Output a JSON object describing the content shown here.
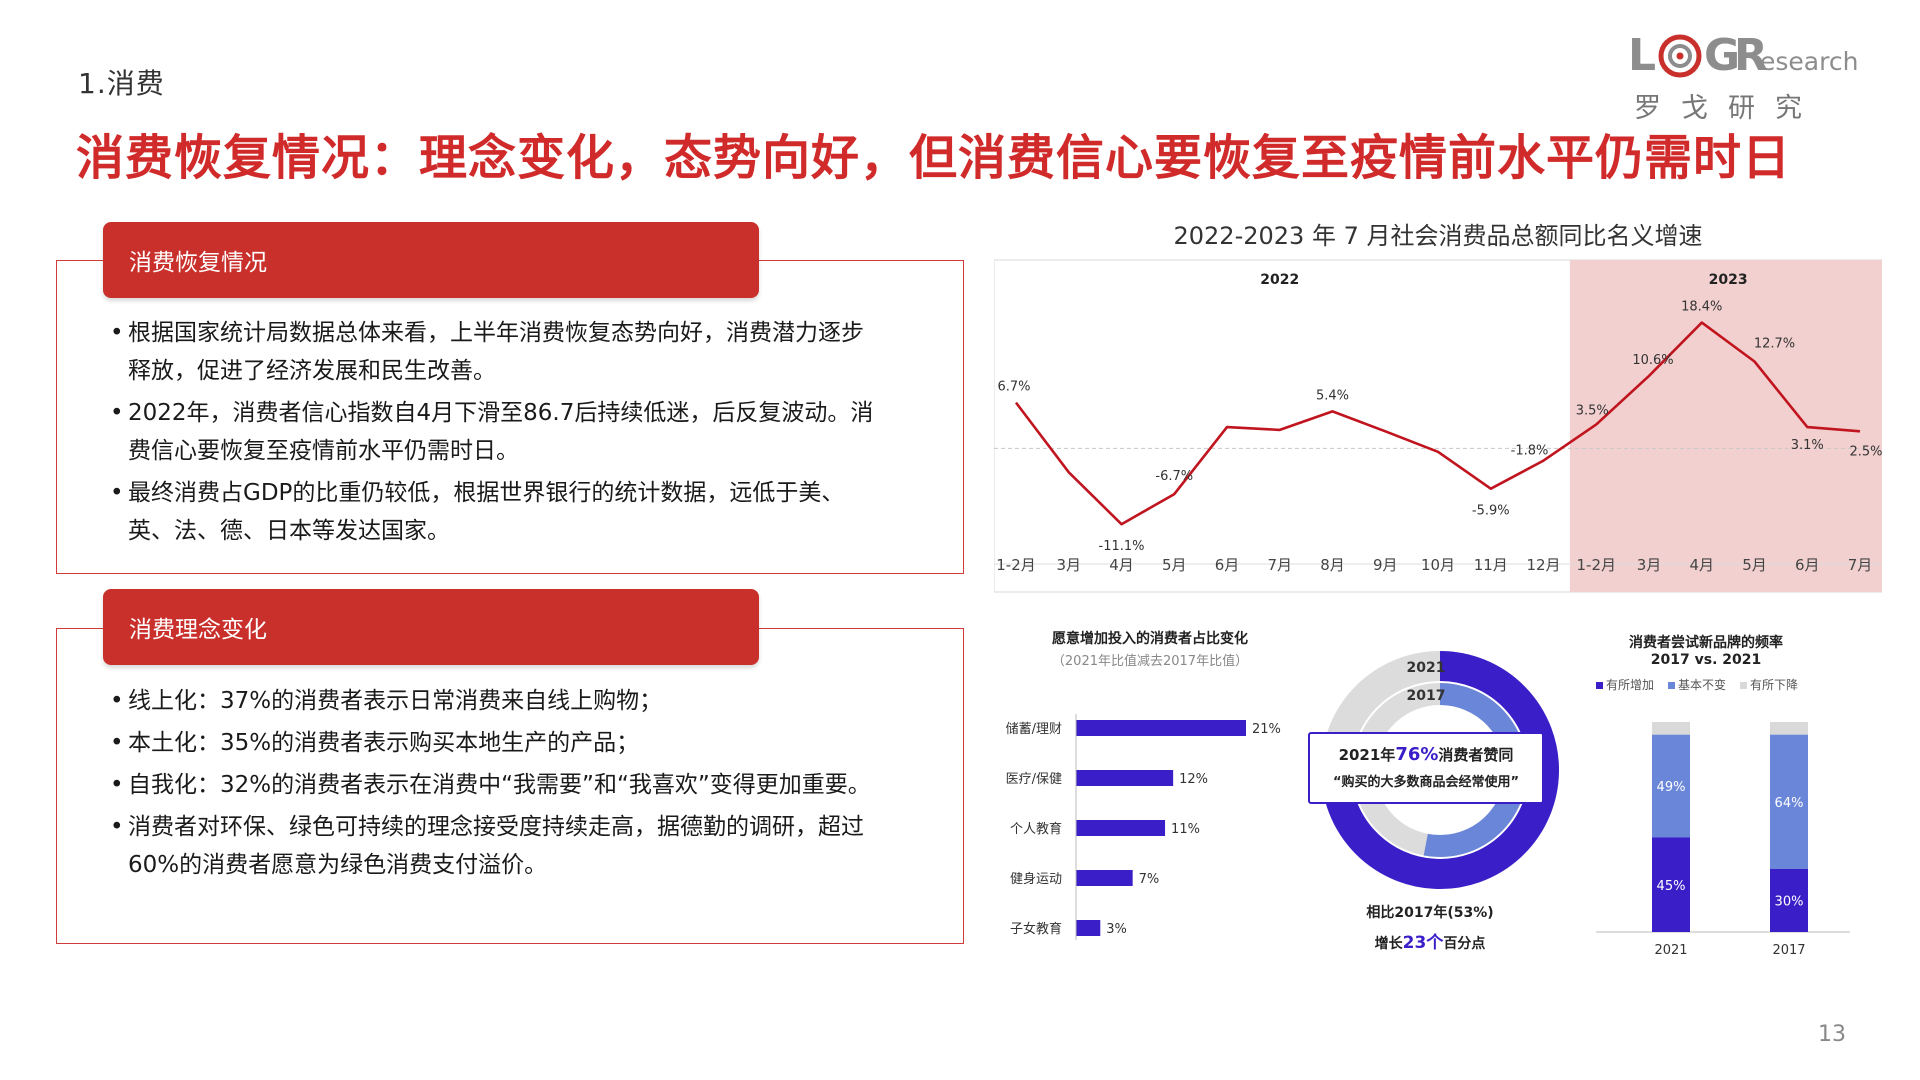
{
  "section": "1.消费",
  "title": "消费恢复情况：理念变化，态势向好，但消费信心要恢复至疫情前水平仍需时日",
  "logo": {
    "word": "LOGResearch",
    "sub": "罗戈研究"
  },
  "box1": {
    "heading": "消费恢复情况",
    "bullets": [
      "根据国家统计局数据总体来看，上半年消费恢复态势向好，消费潜力逐步释放，促进了经济发展和民生改善。",
      "2022年，消费者信心指数自4月下滑至86.7后持续低迷，后反复波动。消费信心要恢复至疫情前水平仍需时日。",
      "最终消费占GDP的比重仍较低，根据世界银行的统计数据，远低于美、英、法、德、日本等发达国家。"
    ]
  },
  "box2": {
    "heading": "消费理念变化",
    "bullets": [
      "线上化：37%的消费者表示日常消费来自线上购物；",
      "本土化：35%的消费者表示购买本地生产的产品；",
      "自我化：32%的消费者表示在消费中“我需要”和“我喜欢”变得更加重要。",
      "消费者对环保、绿色可持续的理念接受度持续走高，据德勤的调研，超过60%的消费者愿意为绿色消费支付溢价。"
    ]
  },
  "line_chart_title": "2022-2023 年 7 月社会消费品总额同比名义增速",
  "bar_chart": {
    "title": "愿意增加投入的消费者占比变化",
    "subtitle": "（2021年比值减去2017年比值）"
  },
  "donut": {
    "ring_outer_label": "2021",
    "ring_inner_label": "2017",
    "callout_prefix": "2021年",
    "callout_value": "76%",
    "callout_suffix": "消费者赞同",
    "callout_quote": "“购买的大多数商品会经常使用”",
    "note_line1": "相比2017年(53%)",
    "note_line2_prefix": "增长",
    "note_line2_value": "23个",
    "note_line2_suffix": "百分点"
  },
  "stacked": {
    "title_line1": "消费者尝试新品牌的频率",
    "title_line2": "2017 vs. 2021",
    "legend": [
      "有所增加",
      "基本不变",
      "有所下降"
    ]
  },
  "page_number": "13",
  "colors": {
    "accent_red": "#c9302c",
    "line_red": "#c0141e",
    "bar_purple": "#3a1fc9",
    "light_blue": "#6a86d8",
    "shade_pink": "#f3d0d0"
  },
  "chart_data": [
    {
      "type": "line",
      "title": "2022-2023 年 7 月社会消费品总额同比名义增速",
      "groups": [
        {
          "label": "2022",
          "categories": [
            "1-2月",
            "3月",
            "4月",
            "5月",
            "6月",
            "7月",
            "8月",
            "9月",
            "10月",
            "11月",
            "12月"
          ]
        },
        {
          "label": "2023",
          "categories": [
            "1-2月",
            "3月",
            "4月",
            "5月",
            "6月",
            "7月"
          ],
          "shaded": true
        }
      ],
      "x": [
        "1-2月",
        "3月",
        "4月",
        "5月",
        "6月",
        "7月",
        "8月",
        "9月",
        "10月",
        "11月",
        "12月",
        "1-2月",
        "3月",
        "4月",
        "5月",
        "6月",
        "7月"
      ],
      "values": [
        6.7,
        -3.5,
        -11.1,
        -6.7,
        3.1,
        2.7,
        5.4,
        2.5,
        -0.5,
        -5.9,
        -1.8,
        3.5,
        10.6,
        18.4,
        12.7,
        3.1,
        2.5
      ],
      "data_labels": [
        {
          "index": 0,
          "text": "6.7%"
        },
        {
          "index": 2,
          "text": "-11.1%"
        },
        {
          "index": 3,
          "text": "-6.7%"
        },
        {
          "index": 6,
          "text": "5.4%"
        },
        {
          "index": 9,
          "text": "-5.9%"
        },
        {
          "index": 10,
          "text": "-1.8%"
        },
        {
          "index": 11,
          "text": "3.5%"
        },
        {
          "index": 12,
          "text": "10.6%"
        },
        {
          "index": 13,
          "text": "18.4%"
        },
        {
          "index": 14,
          "text": "12.7%"
        },
        {
          "index": 15,
          "text": "3.1%"
        },
        {
          "index": 16,
          "text": "2.5%"
        }
      ],
      "ylim": [
        -14,
        22
      ]
    },
    {
      "type": "bar",
      "orientation": "horizontal",
      "title": "愿意增加投入的消费者占比变化",
      "subtitle": "（2021年比值减去2017年比值）",
      "categories": [
        "储蓄/理财",
        "医疗/保健",
        "个人教育",
        "健身运动",
        "子女教育"
      ],
      "values": [
        21,
        12,
        11,
        7,
        3
      ],
      "value_labels": [
        "21%",
        "12%",
        "11%",
        "7%",
        "3%"
      ]
    },
    {
      "type": "pie",
      "variant": "double-donut",
      "rings": [
        {
          "label": "2021",
          "value": 76
        },
        {
          "label": "2017",
          "value": 53
        }
      ]
    },
    {
      "type": "bar",
      "variant": "stacked",
      "title": "消费者尝试新品牌的频率 2017 vs. 2021",
      "categories": [
        "2021",
        "2017"
      ],
      "series": [
        {
          "name": "有所增加",
          "values": [
            45,
            30
          ],
          "labels": [
            "45%",
            "30%"
          ],
          "color": "#3a1fc9"
        },
        {
          "name": "基本不变",
          "values": [
            49,
            64
          ],
          "labels": [
            "49%",
            "64%"
          ],
          "color": "#6a86d8"
        },
        {
          "name": "有所下降",
          "values": [
            6,
            6
          ],
          "labels": [
            "",
            ""
          ],
          "color": "#d9d9d9"
        }
      ],
      "ylim": [
        0,
        100
      ]
    }
  ]
}
